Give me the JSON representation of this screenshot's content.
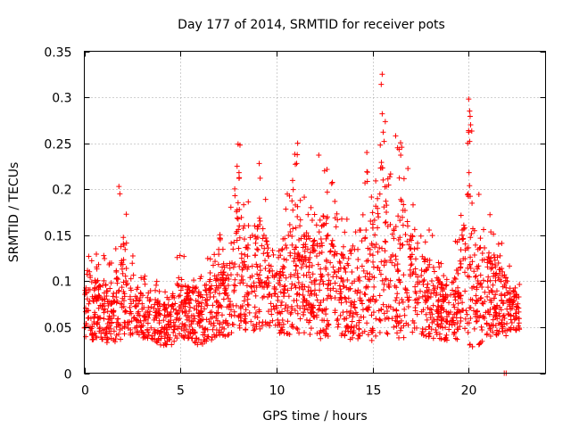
{
  "chart_data": {
    "type": "scatter",
    "title": "Day 177 of 2014, SRMTID for receiver pots",
    "xlabel": "GPS time / hours",
    "ylabel": "SRMTID / TECUs",
    "xlim": [
      0,
      24
    ],
    "ylim": [
      0,
      0.35
    ],
    "xticks": [
      0,
      5,
      10,
      15,
      20
    ],
    "xtick_labels": [
      "0",
      "5",
      "10",
      "15",
      "20"
    ],
    "yticks": [
      0,
      0.05,
      0.1,
      0.15,
      0.2,
      0.25,
      0.3,
      0.35
    ],
    "ytick_labels": [
      "0",
      "0.05",
      "0.1",
      "0.15",
      "0.2",
      "0.25",
      "0.3",
      "0.35"
    ],
    "grid": true,
    "marker": "+",
    "color": "#ff0000",
    "envelope": {
      "x": [
        0,
        0.5,
        1,
        1.5,
        2,
        2.5,
        3,
        3.5,
        4,
        4.5,
        5,
        5.5,
        6,
        6.5,
        7,
        7.5,
        8,
        8.5,
        9,
        9.5,
        10,
        10.5,
        11,
        11.5,
        12,
        12.5,
        13,
        13.5,
        14,
        14.5,
        15,
        15.5,
        16,
        16.5,
        17,
        17.5,
        18,
        18.5,
        19,
        19.5,
        20,
        20.5,
        21,
        21.5,
        22,
        22.5
      ],
      "low": [
        0.04,
        0.035,
        0.035,
        0.03,
        0.035,
        0.04,
        0.035,
        0.035,
        0.03,
        0.03,
        0.035,
        0.035,
        0.03,
        0.035,
        0.04,
        0.04,
        0.045,
        0.045,
        0.045,
        0.05,
        0.045,
        0.04,
        0.045,
        0.04,
        0.04,
        0.035,
        0.04,
        0.04,
        0.035,
        0.035,
        0.035,
        0.04,
        0.04,
        0.035,
        0.04,
        0.04,
        0.035,
        0.035,
        0.035,
        0.035,
        0.025,
        0.03,
        0.04,
        0.04,
        0.04,
        0.045
      ],
      "high": [
        0.15,
        0.13,
        0.13,
        0.12,
        0.2,
        0.13,
        0.11,
        0.1,
        0.1,
        0.11,
        0.14,
        0.12,
        0.12,
        0.13,
        0.15,
        0.16,
        0.25,
        0.19,
        0.23,
        0.2,
        0.16,
        0.21,
        0.25,
        0.2,
        0.19,
        0.24,
        0.21,
        0.17,
        0.18,
        0.24,
        0.21,
        0.33,
        0.2,
        0.26,
        0.22,
        0.17,
        0.16,
        0.13,
        0.12,
        0.16,
        0.3,
        0.2,
        0.18,
        0.16,
        0.13,
        0.1
      ]
    },
    "highlights": [
      {
        "x": 1.8,
        "y": 0.203
      },
      {
        "x": 1.85,
        "y": 0.195
      },
      {
        "x": 8.0,
        "y": 0.249
      },
      {
        "x": 8.1,
        "y": 0.248
      },
      {
        "x": 7.95,
        "y": 0.225
      },
      {
        "x": 8.05,
        "y": 0.218
      },
      {
        "x": 9.1,
        "y": 0.228
      },
      {
        "x": 9.15,
        "y": 0.212
      },
      {
        "x": 11.1,
        "y": 0.25
      },
      {
        "x": 10.95,
        "y": 0.238
      },
      {
        "x": 11.05,
        "y": 0.228
      },
      {
        "x": 12.2,
        "y": 0.237
      },
      {
        "x": 12.5,
        "y": 0.22
      },
      {
        "x": 14.7,
        "y": 0.24
      },
      {
        "x": 15.5,
        "y": 0.325
      },
      {
        "x": 15.45,
        "y": 0.314
      },
      {
        "x": 15.5,
        "y": 0.282
      },
      {
        "x": 15.55,
        "y": 0.262
      },
      {
        "x": 15.6,
        "y": 0.252
      },
      {
        "x": 15.4,
        "y": 0.248
      },
      {
        "x": 16.2,
        "y": 0.258
      },
      {
        "x": 16.3,
        "y": 0.245
      },
      {
        "x": 20.0,
        "y": 0.298
      },
      {
        "x": 20.05,
        "y": 0.285
      },
      {
        "x": 20.1,
        "y": 0.27
      },
      {
        "x": 20.0,
        "y": 0.262
      },
      {
        "x": 20.05,
        "y": 0.252
      },
      {
        "x": 19.95,
        "y": 0.25
      },
      {
        "x": 21.85,
        "y": 0.0
      },
      {
        "x": 21.95,
        "y": 0.0
      }
    ]
  }
}
